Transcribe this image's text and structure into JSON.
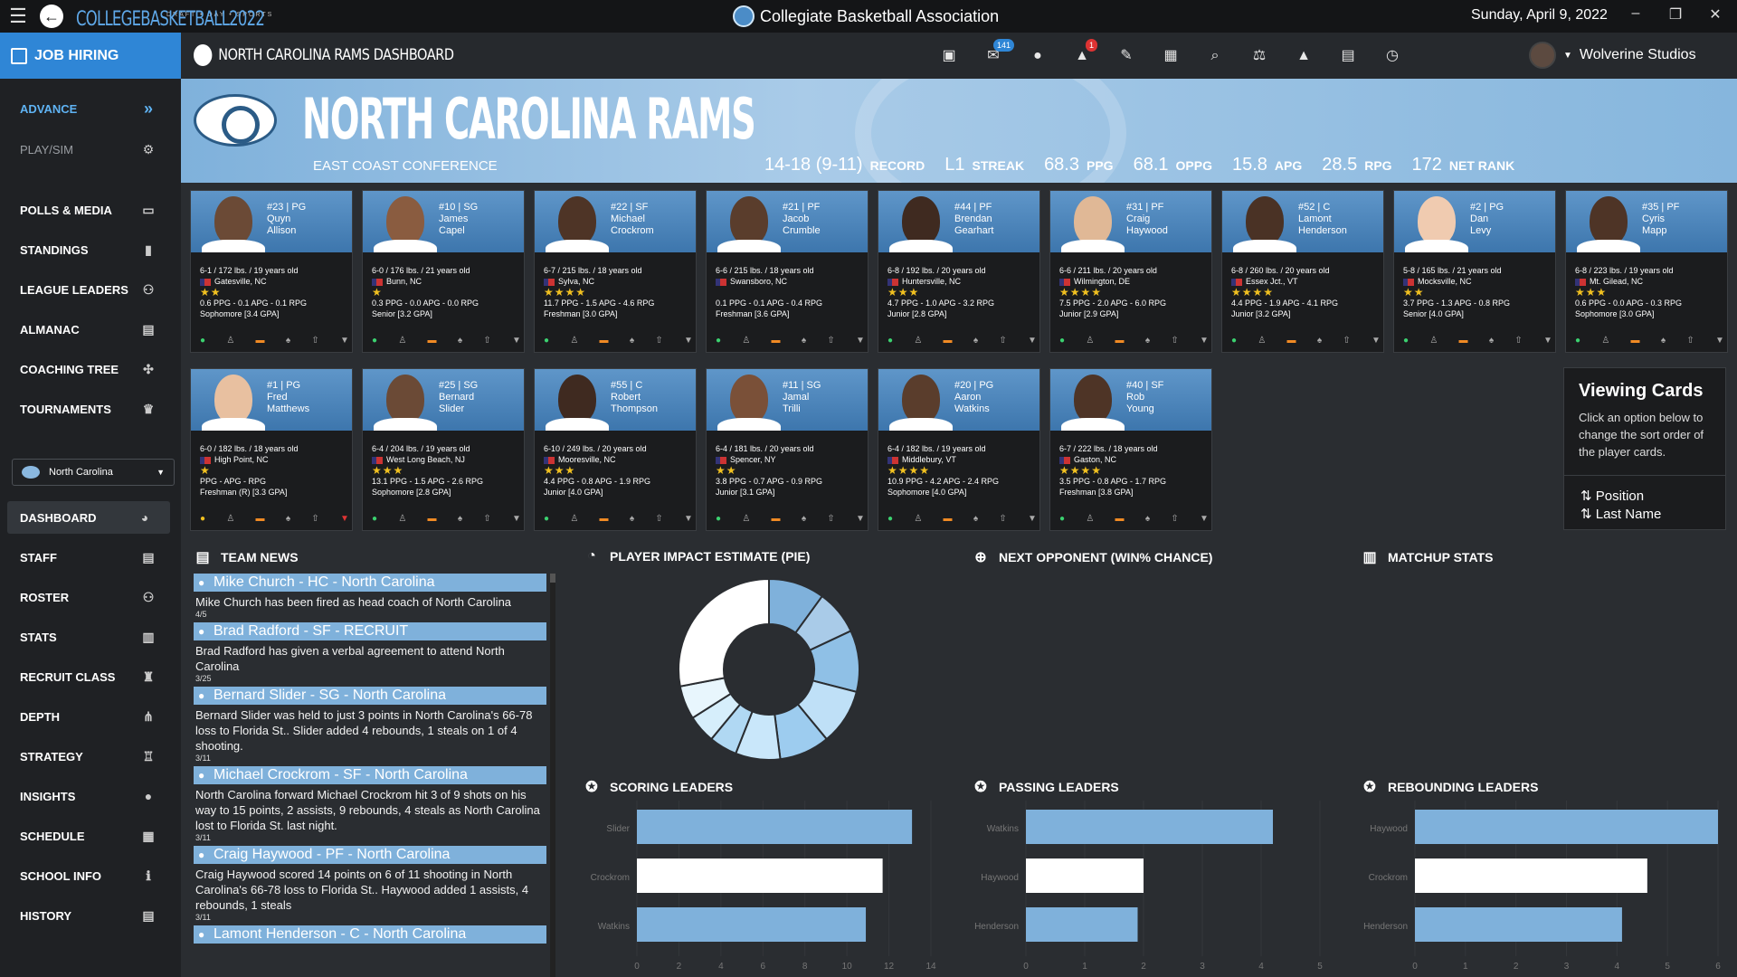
{
  "titlebar": {
    "logo_small": "DRAFT • DAY • SPORTS",
    "logo": "COLLEGEBASKETBALL2022",
    "title": "Collegiate Basketball Association",
    "date": "Sunday, April 9, 2022",
    "min": "–",
    "restore": "❐",
    "close": "✕"
  },
  "header": {
    "job": "JOB HIRING",
    "dashboard": "NORTH CAROLINA RAMS DASHBOARD",
    "mail_count": "141",
    "alert_count": "1",
    "user": "Wolverine Studios"
  },
  "sidebar": {
    "advance": "ADVANCE",
    "playsim": "PLAY/SIM",
    "team_select": "North Carolina",
    "items": [
      "POLLS & MEDIA",
      "STANDINGS",
      "LEAGUE LEADERS",
      "ALMANAC",
      "COACHING TREE",
      "TOURNAMENTS"
    ],
    "items2": [
      "DASHBOARD",
      "STAFF",
      "ROSTER",
      "STATS",
      "RECRUIT CLASS",
      "DEPTH",
      "STRATEGY",
      "INSIGHTS",
      "SCHEDULE",
      "SCHOOL INFO",
      "HISTORY"
    ]
  },
  "banner": {
    "team": "NORTH CAROLINA RAMS",
    "conference": "EAST COAST CONFERENCE",
    "stats": [
      {
        "v": "14-18 (9-11)",
        "l": "RECORD"
      },
      {
        "v": "L1",
        "l": "STREAK"
      },
      {
        "v": "68.3",
        "l": "PPG"
      },
      {
        "v": "68.1",
        "l": "OPPG"
      },
      {
        "v": "15.8",
        "l": "APG"
      },
      {
        "v": "28.5",
        "l": "RPG"
      },
      {
        "v": "172",
        "l": "NET RANK"
      }
    ]
  },
  "players": [
    {
      "num": "#23 | PG",
      "first": "Quyn",
      "last": "Allison",
      "hw": "6-1 / 172 lbs. / 19 years old",
      "home": "Gatesville, NC",
      "stars": "★★",
      "line": "0.6 PPG - 0.1 APG - 0.1 RPG",
      "yr": "Sophomore [3.4 GPA]",
      "skin": "#6b4a36",
      "st": "g"
    },
    {
      "num": "#10 | SG",
      "first": "James",
      "last": "Capel",
      "hw": "6-0 / 176 lbs. / 21 years old",
      "home": "Bunn, NC",
      "stars": "★",
      "line": "0.3 PPG - 0.0 APG - 0.0 RPG",
      "yr": "Senior [3.2 GPA]",
      "skin": "#8a5c40",
      "st": "g"
    },
    {
      "num": "#22 | SF",
      "first": "Michael",
      "last": "Crockrom",
      "hw": "6-7 / 215 lbs. / 18 years old",
      "home": "Sylva, NC",
      "stars": "★★★★",
      "line": "11.7 PPG - 1.5 APG - 4.6 RPG",
      "yr": "Freshman [3.0 GPA]",
      "skin": "#4e3426",
      "st": "g"
    },
    {
      "num": "#21 | PF",
      "first": "Jacob",
      "last": "Crumble",
      "hw": "6-6 / 215 lbs. / 18 years old",
      "home": "Swansboro, NC",
      "stars": "",
      "line": "0.1 PPG - 0.1 APG - 0.4 RPG",
      "yr": "Freshman [3.6 GPA]",
      "skin": "#5a3d2c",
      "st": "g"
    },
    {
      "num": "#44 | PF",
      "first": "Brendan",
      "last": "Gearhart",
      "hw": "6-8 / 192 lbs. / 20 years old",
      "home": "Huntersville, NC",
      "stars": "★★★",
      "line": "4.7 PPG - 1.0 APG - 3.2 RPG",
      "yr": "Junior [2.8 GPA]",
      "skin": "#3f2a20",
      "st": "g"
    },
    {
      "num": "#31 | PF",
      "first": "Craig",
      "last": "Haywood",
      "hw": "6-6 / 211 lbs. / 20 years old",
      "home": "Wilmington, DE",
      "stars": "★★★★",
      "line": "7.5 PPG - 2.0 APG - 6.0 RPG",
      "yr": "Junior [2.9 GPA]",
      "skin": "#e0b896",
      "st": "g"
    },
    {
      "num": "#52 | C",
      "first": "Lamont",
      "last": "Henderson",
      "hw": "6-8 / 260 lbs. / 20 years old",
      "home": "Essex Jct., VT",
      "stars": "★★★★",
      "line": "4.4 PPG - 1.9 APG - 4.1 RPG",
      "yr": "Junior [3.2 GPA]",
      "skin": "#4a3225",
      "st": "g"
    },
    {
      "num": "#2 | PG",
      "first": "Dan",
      "last": "Levy",
      "hw": "5-8 / 165 lbs. / 21 years old",
      "home": "Mocksville, NC",
      "stars": "★★",
      "line": "3.7 PPG - 1.3 APG - 0.8 RPG",
      "yr": "Senior [4.0 GPA]",
      "skin": "#f0cbb0",
      "st": "g"
    },
    {
      "num": "#35 | PF",
      "first": "Cyris",
      "last": "Mapp",
      "hw": "6-8 / 223 lbs. / 19 years old",
      "home": "Mt. Gilead, NC",
      "stars": "★★★",
      "line": "0.6 PPG - 0.0 APG - 0.3 RPG",
      "yr": "Sophomore [3.0 GPA]",
      "skin": "#4e3426",
      "st": "g"
    },
    {
      "num": "#1 | PG",
      "first": "Fred",
      "last": "Matthews",
      "hw": "6-0 / 182 lbs. / 18 years old",
      "home": "High Point, NC",
      "stars": "★",
      "line": "PPG - APG - RPG",
      "yr": "Freshman (R) [3.3 GPA]",
      "skin": "#e8c0a0",
      "st": "y"
    },
    {
      "num": "#25 | SG",
      "first": "Bernard",
      "last": "Slider",
      "hw": "6-4 / 204 lbs. / 19 years old",
      "home": "West Long Beach, NJ",
      "stars": "★★★",
      "line": "13.1 PPG - 1.5 APG - 2.6 RPG",
      "yr": "Sophomore [2.8 GPA]",
      "skin": "#6b4a36",
      "st": "g"
    },
    {
      "num": "#55 | C",
      "first": "Robert",
      "last": "Thompson",
      "hw": "6-10 / 249 lbs. / 20 years old",
      "home": "Mooresville, NC",
      "stars": "★★★",
      "line": "4.4 PPG - 0.8 APG - 1.9 RPG",
      "yr": "Junior [4.0 GPA]",
      "skin": "#3f2a20",
      "st": "g"
    },
    {
      "num": "#11 | SG",
      "first": "Jamal",
      "last": "Trilli",
      "hw": "6-4 / 181 lbs. / 20 years old",
      "home": "Spencer, NY",
      "stars": "★★",
      "line": "3.8 PPG - 0.7 APG - 0.9 RPG",
      "yr": "Junior [3.1 GPA]",
      "skin": "#7a5038",
      "st": "g"
    },
    {
      "num": "#20 | PG",
      "first": "Aaron",
      "last": "Watkins",
      "hw": "6-4 / 182 lbs. / 19 years old",
      "home": "Middlebury, VT",
      "stars": "★★★★",
      "line": "10.9 PPG - 4.2 APG - 2.4 RPG",
      "yr": "Sophomore [4.0 GPA]",
      "skin": "#5a3d2c",
      "st": "g"
    },
    {
      "num": "#40 | SF",
      "first": "Rob",
      "last": "Young",
      "hw": "6-7 / 222 lbs. / 18 years old",
      "home": "Gaston, NC",
      "stars": "★★★★",
      "line": "3.5 PPG - 0.8 APG - 1.7 RPG",
      "yr": "Freshman [3.8 GPA]",
      "skin": "#4e3426",
      "st": "g"
    }
  ],
  "viewing": {
    "title": "Viewing Cards",
    "text": "Click an option below to change the sort order of the player cards.",
    "opt1": "Position",
    "opt2": "Last Name"
  },
  "sections": {
    "news": "TEAM NEWS",
    "pie": "PLAYER IMPACT ESTIMATE (PIE)",
    "next": "NEXT OPPONENT (WIN% CHANCE)",
    "matchup": "MATCHUP STATS",
    "scoring": "SCORING LEADERS",
    "passing": "PASSING LEADERS",
    "rebounding": "REBOUNDING LEADERS"
  },
  "news": [
    {
      "h": "Mike Church - HC - North Carolina",
      "b": "Mike Church has been fired as head coach of North Carolina",
      "d": "4/5"
    },
    {
      "h": "Brad Radford - SF - RECRUIT",
      "b": "Brad Radford has given a verbal agreement to attend North Carolina",
      "d": "3/25"
    },
    {
      "h": "Bernard Slider - SG - North Carolina",
      "b": "Bernard Slider was held to just 3 points in North Carolina's 66-78 loss to Florida St.. Slider added 4 rebounds, 1 steals on 1 of 4 shooting.",
      "d": "3/11"
    },
    {
      "h": "Michael Crockrom - SF - North Carolina",
      "b": "North Carolina forward Michael Crockrom hit 3 of 9 shots on his way to 15 points, 2 assists, 9 rebounds, 4 steals as North Carolina lost to Florida St. last night.",
      "d": "3/11"
    },
    {
      "h": "Craig Haywood - PF - North Carolina",
      "b": "Craig Haywood scored 14 points on 6 of 11 shooting in North Carolina's 66-78 loss to Florida St.. Haywood added 1 assists, 4 rebounds, 1 steals",
      "d": "3/11"
    },
    {
      "h": "Lamont Henderson - C - North Carolina",
      "b": "",
      "d": ""
    }
  ],
  "chart_data": [
    {
      "type": "pie",
      "title": "PLAYER IMPACT ESTIMATE (PIE)",
      "values": [
        10,
        8,
        11,
        10,
        9,
        8,
        5,
        5,
        6,
        28
      ],
      "colors": [
        "#7fb1db",
        "#a9cbe8",
        "#8fc0e6",
        "#bfe0f7",
        "#9dccef",
        "#c9e7fa",
        "#b0d8f3",
        "#d6eefb",
        "#e8f6fd",
        "#ffffff"
      ]
    },
    {
      "type": "bar",
      "title": "SCORING LEADERS",
      "categories": [
        "Slider",
        "Crockrom",
        "Watkins"
      ],
      "values": [
        13.1,
        11.7,
        10.9
      ],
      "xlim": [
        0,
        14
      ],
      "ticks": [
        0,
        2,
        4,
        6,
        8,
        10,
        12,
        14
      ],
      "colors": [
        "#7fb1db",
        "#ffffff",
        "#7fb1db"
      ]
    },
    {
      "type": "bar",
      "title": "PASSING LEADERS",
      "categories": [
        "Watkins",
        "Haywood",
        "Henderson"
      ],
      "values": [
        4.2,
        2.0,
        1.9
      ],
      "xlim": [
        0,
        5
      ],
      "ticks": [
        0,
        1,
        2,
        3,
        4,
        5
      ],
      "colors": [
        "#7fb1db",
        "#ffffff",
        "#7fb1db"
      ]
    },
    {
      "type": "bar",
      "title": "REBOUNDING LEADERS",
      "categories": [
        "Haywood",
        "Crockrom",
        "Henderson"
      ],
      "values": [
        6.0,
        4.6,
        4.1
      ],
      "xlim": [
        0,
        6
      ],
      "ticks": [
        0,
        1,
        2,
        3,
        4,
        5,
        6
      ],
      "colors": [
        "#7fb1db",
        "#ffffff",
        "#7fb1db"
      ]
    }
  ]
}
